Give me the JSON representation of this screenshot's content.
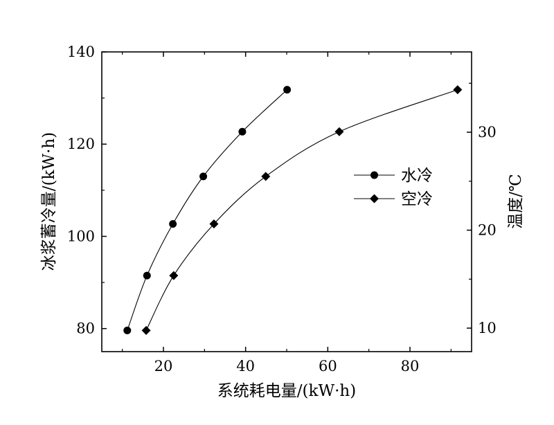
{
  "chart_data": {
    "type": "line",
    "xlabel": "系统耗电量/(kW·h)",
    "ylabel": "冰浆蓄冷量/(kW·h)",
    "y2label": "温度/℃",
    "xlim": [
      5,
      95
    ],
    "ylim": [
      75,
      140
    ],
    "y2lim": [
      7.6,
      38.2
    ],
    "x_ticks": [
      "20",
      "40",
      "60",
      "80"
    ],
    "y_ticks": [
      "80",
      "100",
      "120",
      "140"
    ],
    "y2_ticks": [
      "10",
      "20",
      "30"
    ],
    "grid": false,
    "legend_position": "right-center",
    "series": [
      {
        "name": "水冷",
        "marker": "circle",
        "x": [
          11.2,
          16.0,
          22.3,
          29.7,
          39.2,
          50.1
        ],
        "y": [
          79.6,
          91.5,
          102.7,
          113.0,
          122.7,
          131.8
        ]
      },
      {
        "name": "空冷",
        "marker": "diamond",
        "x": [
          15.8,
          22.5,
          32.3,
          44.9,
          62.8,
          91.6
        ],
        "y": [
          79.6,
          91.5,
          102.7,
          113.0,
          122.7,
          131.8
        ]
      }
    ]
  }
}
